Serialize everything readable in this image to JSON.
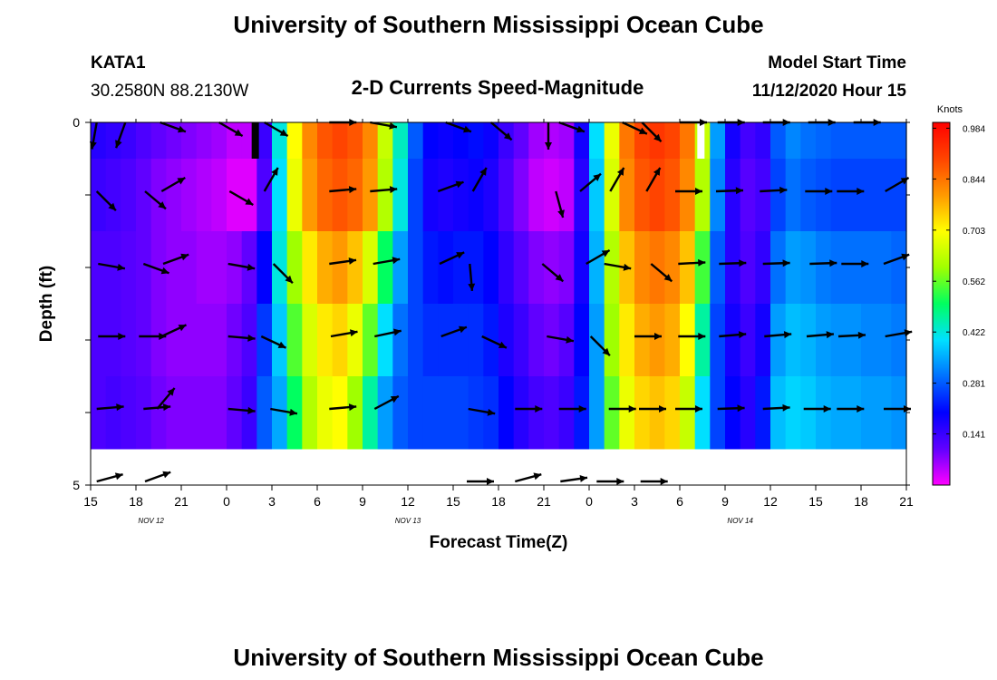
{
  "header": {
    "title": "University of Southern Mississippi Ocean Cube",
    "station": "KATA1",
    "coords": "30.2580N 88.2130W",
    "plot_title": "2-D Currents Speed-Magnitude",
    "model_start_label": "Model Start Time",
    "model_start_value": "11/12/2020 Hour 15"
  },
  "footer": {
    "title": "University of Southern Mississippi Ocean Cube"
  },
  "colorbar": {
    "unit": "Knots",
    "ticks": [
      "0.984",
      "0.844",
      "0.703",
      "0.562",
      "0.422",
      "0.281",
      "0.141"
    ],
    "tick_values": [
      0.984,
      0.844,
      0.703,
      0.562,
      0.422,
      0.281,
      0.141
    ],
    "range": [
      0,
      1.0
    ],
    "colors": [
      "#ff00ff",
      "#6000ff",
      "#0000ff",
      "#0070ff",
      "#00e0ff",
      "#00ff60",
      "#a0ff00",
      "#ffff00",
      "#ff9900",
      "#ff4400",
      "#ff0000"
    ]
  },
  "chart_data": {
    "type": "heatmap",
    "title": "2-D Currents Speed-Magnitude",
    "xlabel": "Forecast Time(Z)",
    "ylabel": "Depth (ft)",
    "x_tick_labels": [
      "15",
      "18",
      "21",
      "0",
      "3",
      "6",
      "9",
      "12",
      "15",
      "18",
      "21",
      "0",
      "3",
      "6",
      "9",
      "12",
      "15",
      "18",
      "21"
    ],
    "x_range_hours": [
      15,
      69
    ],
    "day_labels": [
      {
        "label": "NOV 12",
        "hour": 19
      },
      {
        "label": "NOV 13",
        "hour": 36
      },
      {
        "label": "NOV 14",
        "hour": 58
      }
    ],
    "y_tick_labels": [
      "0",
      "5"
    ],
    "y_range": [
      0,
      5
    ],
    "depth_rows": 5,
    "columns": 54,
    "cell_layers": [
      0,
      0.5,
      1.5,
      2.5,
      3.5,
      4.5
    ],
    "speed_knots_profile": [
      [
        0.14,
        0.12,
        0.12,
        0.12
      ],
      [
        0.13,
        0.12,
        0.12,
        0.13
      ],
      [
        0.12,
        0.11,
        0.11,
        0.12
      ],
      [
        0.1,
        0.1,
        0.1,
        0.11
      ],
      [
        0.08,
        0.08,
        0.08,
        0.09
      ],
      [
        0.07,
        0.07,
        0.07,
        0.08
      ],
      [
        0.06,
        0.07,
        0.07,
        0.08
      ],
      [
        0.05,
        0.06,
        0.07,
        0.08
      ],
      [
        0.04,
        0.06,
        0.07,
        0.08
      ],
      [
        0.02,
        0.07,
        0.09,
        0.1
      ],
      [
        0.02,
        0.1,
        0.12,
        0.14
      ],
      [
        0.12,
        0.2,
        0.25,
        0.28
      ],
      [
        0.4,
        0.42,
        0.38,
        0.35
      ],
      [
        0.68,
        0.6,
        0.55,
        0.5
      ],
      [
        0.8,
        0.72,
        0.66,
        0.62
      ],
      [
        0.86,
        0.78,
        0.72,
        0.68
      ],
      [
        0.88,
        0.8,
        0.74,
        0.7
      ],
      [
        0.86,
        0.76,
        0.68,
        0.6
      ],
      [
        0.8,
        0.66,
        0.56,
        0.46
      ],
      [
        0.62,
        0.5,
        0.4,
        0.34
      ],
      [
        0.42,
        0.34,
        0.3,
        0.28
      ],
      [
        0.26,
        0.26,
        0.26,
        0.26
      ],
      [
        0.18,
        0.22,
        0.24,
        0.26
      ],
      [
        0.17,
        0.21,
        0.24,
        0.26
      ],
      [
        0.18,
        0.22,
        0.24,
        0.26
      ],
      [
        0.19,
        0.22,
        0.24,
        0.25
      ],
      [
        0.17,
        0.2,
        0.22,
        0.24
      ],
      [
        0.12,
        0.15,
        0.17,
        0.2
      ],
      [
        0.08,
        0.11,
        0.14,
        0.16
      ],
      [
        0.04,
        0.08,
        0.1,
        0.13
      ],
      [
        0.03,
        0.07,
        0.09,
        0.12
      ],
      [
        0.04,
        0.08,
        0.11,
        0.14
      ],
      [
        0.16,
        0.18,
        0.2,
        0.22
      ],
      [
        0.38,
        0.36,
        0.34,
        0.34
      ],
      [
        0.66,
        0.62,
        0.6,
        0.56
      ],
      [
        0.82,
        0.76,
        0.72,
        0.68
      ],
      [
        0.88,
        0.82,
        0.78,
        0.74
      ],
      [
        0.9,
        0.84,
        0.8,
        0.76
      ],
      [
        0.88,
        0.82,
        0.78,
        0.74
      ],
      [
        0.82,
        0.76,
        0.7,
        0.64
      ],
      [
        0.62,
        0.54,
        0.46,
        0.4
      ],
      [
        0.32,
        0.28,
        0.26,
        0.26
      ],
      [
        0.16,
        0.16,
        0.18,
        0.2
      ],
      [
        0.11,
        0.12,
        0.14,
        0.16
      ],
      [
        0.13,
        0.15,
        0.18,
        0.22
      ],
      [
        0.26,
        0.3,
        0.34,
        0.37
      ],
      [
        0.3,
        0.34,
        0.37,
        0.39
      ],
      [
        0.28,
        0.33,
        0.36,
        0.38
      ],
      [
        0.27,
        0.31,
        0.34,
        0.36
      ],
      [
        0.26,
        0.3,
        0.33,
        0.35
      ],
      [
        0.26,
        0.3,
        0.33,
        0.35
      ],
      [
        0.26,
        0.3,
        0.32,
        0.34
      ],
      [
        0.26,
        0.3,
        0.32,
        0.34
      ],
      [
        0.26,
        0.29,
        0.31,
        0.33
      ]
    ],
    "gaps": [
      {
        "hour": 25.9,
        "color": "#000000",
        "label": "black bar"
      },
      {
        "hour": 55.4,
        "color": "#ffffff",
        "label": "white bar"
      }
    ],
    "vector_columns_hours": [
      15,
      17,
      19,
      21,
      24,
      25.5,
      27,
      29,
      30.5,
      33,
      36,
      39,
      41,
      44,
      46,
      48,
      50,
      52,
      54,
      56,
      59,
      62,
      65,
      68
    ],
    "vectors": [
      [
        0,
        0,
        [
          [
            15.4,
            100
          ],
          [
            17.3,
            110
          ],
          [
            19.6,
            20
          ],
          [
            23.5,
            30
          ],
          [
            26.5,
            30
          ],
          [
            30.8,
            0
          ],
          [
            33.5,
            10
          ],
          [
            38.5,
            20
          ],
          [
            41.5,
            40
          ],
          [
            45.3,
            90
          ],
          [
            46,
            20
          ],
          [
            50.2,
            25
          ],
          [
            51.5,
            45
          ],
          [
            54,
            0
          ],
          [
            56.5,
            0
          ],
          [
            59.5,
            0
          ],
          [
            62.5,
            0
          ],
          [
            65.5,
            0
          ]
        ]
      ],
      [
        1,
        0.95,
        [
          [
            15.4,
            45
          ],
          [
            18.6,
            40
          ],
          [
            19.7,
            -30
          ],
          [
            24.2,
            30
          ],
          [
            26.5,
            -60
          ],
          [
            30.8,
            -5
          ],
          [
            33.5,
            -5
          ],
          [
            38,
            -20
          ],
          [
            40.3,
            -60
          ],
          [
            45.8,
            75
          ],
          [
            47.4,
            -40
          ],
          [
            49.4,
            -60
          ],
          [
            51.8,
            -60
          ],
          [
            53.7,
            0
          ],
          [
            56.4,
            -2
          ],
          [
            59.3,
            -3
          ],
          [
            62.3,
            0
          ],
          [
            64.4,
            0
          ],
          [
            67.6,
            -30
          ]
        ]
      ],
      [
        2,
        1.95,
        [
          [
            15.5,
            10
          ],
          [
            18.5,
            20
          ],
          [
            19.8,
            -20
          ],
          [
            24.1,
            10
          ],
          [
            27.1,
            45
          ],
          [
            30.8,
            -8
          ],
          [
            33.7,
            -10
          ],
          [
            38.1,
            -25
          ],
          [
            40.1,
            85
          ],
          [
            44.9,
            40
          ],
          [
            47.8,
            -30
          ],
          [
            49,
            10
          ],
          [
            52.1,
            40
          ],
          [
            53.9,
            -3
          ],
          [
            56.6,
            -2
          ],
          [
            59.5,
            -2
          ],
          [
            62.6,
            -2
          ],
          [
            64.7,
            0
          ],
          [
            67.5,
            -20
          ]
        ]
      ],
      [
        3,
        2.95,
        [
          [
            15.5,
            0
          ],
          [
            18.2,
            0
          ],
          [
            19.7,
            -25
          ],
          [
            24.1,
            5
          ],
          [
            26.3,
            25
          ],
          [
            30.9,
            -10
          ],
          [
            33.8,
            -12
          ],
          [
            38.2,
            -20
          ],
          [
            40.9,
            25
          ],
          [
            45.2,
            10
          ],
          [
            48.1,
            45
          ],
          [
            51,
            0
          ],
          [
            53.9,
            0
          ],
          [
            56.6,
            -5
          ],
          [
            59.6,
            -5
          ],
          [
            62.4,
            -5
          ],
          [
            64.5,
            -3
          ],
          [
            67.6,
            -10
          ]
        ]
      ],
      [
        4,
        3.95,
        [
          [
            15.4,
            -5
          ],
          [
            18.5,
            -5
          ],
          [
            19.4,
            -50
          ],
          [
            24.1,
            5
          ],
          [
            26.9,
            10
          ],
          [
            30.8,
            -5
          ],
          [
            33.8,
            -28
          ],
          [
            40,
            10
          ],
          [
            43.1,
            0
          ],
          [
            46,
            0
          ],
          [
            49.3,
            0
          ],
          [
            51.3,
            0
          ],
          [
            53.7,
            0
          ],
          [
            56.5,
            -2
          ],
          [
            59.5,
            -3
          ],
          [
            62.2,
            0
          ],
          [
            64.4,
            0
          ],
          [
            67.5,
            0
          ]
        ]
      ],
      [
        5,
        4.95,
        [
          [
            15.4,
            -15
          ],
          [
            18.6,
            -20
          ],
          [
            39.9,
            0
          ],
          [
            43.1,
            -15
          ],
          [
            46.1,
            -8
          ],
          [
            48.5,
            0
          ],
          [
            51.4,
            0
          ]
        ]
      ]
    ]
  }
}
